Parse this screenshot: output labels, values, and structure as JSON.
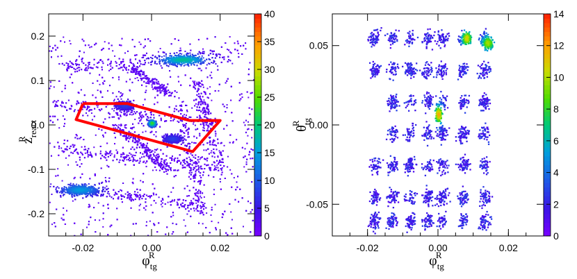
{
  "chart_data": [
    {
      "type": "heatmap",
      "xlabel": {
        "base": "φ",
        "sub": "tg",
        "sup": "R"
      },
      "ylabel": {
        "base": "z",
        "sub": "react",
        "sup": "R"
      },
      "xlim": [
        -0.03,
        0.03
      ],
      "ylim": [
        -0.25,
        0.25
      ],
      "xticks": [
        -0.02,
        0.0,
        0.02
      ],
      "xtick_labels": [
        "-0.02",
        "0.00",
        "0.02"
      ],
      "yticks": [
        -0.2,
        -0.1,
        0.0,
        0.1,
        0.2
      ],
      "ytick_labels": [
        "-0.2",
        "-0.1",
        "0.0",
        "0.1",
        "0.2"
      ],
      "colorbar": {
        "min": 0,
        "max": 40,
        "ticks": [
          0,
          5,
          10,
          15,
          20,
          25,
          30,
          35,
          40
        ],
        "tick_labels": [
          "0",
          "5",
          "10",
          "15",
          "20",
          "25",
          "30",
          "35",
          "40"
        ]
      },
      "hotspots": [
        {
          "x": 0.009,
          "y": 0.148,
          "w": 0.007,
          "h": 0.012,
          "peak": 17
        },
        {
          "x": -0.021,
          "y": -0.145,
          "w": 0.006,
          "h": 0.014,
          "peak": 13
        },
        {
          "x": 0.0,
          "y": 0.005,
          "w": 0.0012,
          "h": 0.008,
          "peak": 22
        },
        {
          "x": 0.006,
          "y": -0.03,
          "w": 0.003,
          "h": 0.01,
          "peak": 6
        },
        {
          "x": -0.008,
          "y": 0.045,
          "w": 0.003,
          "h": 0.01,
          "peak": 6
        }
      ],
      "cut_polygon": {
        "color": "#ff0000",
        "points": [
          [
            -0.02,
            0.048
          ],
          [
            -0.007,
            0.048
          ],
          [
            0.011,
            0.01
          ],
          [
            0.015,
            0.01
          ],
          [
            0.02,
            0.01
          ],
          [
            0.012,
            -0.06
          ],
          [
            -0.022,
            0.012
          ],
          [
            -0.02,
            0.048
          ]
        ]
      }
    },
    {
      "type": "heatmap",
      "xlabel": {
        "base": "φ",
        "sub": "tg",
        "sup": "R"
      },
      "ylabel": {
        "base": "θ",
        "sub": "tg",
        "sup": "R"
      },
      "xlim": [
        -0.03,
        0.03
      ],
      "ylim": [
        -0.07,
        0.07
      ],
      "xticks": [
        -0.02,
        0.0,
        0.02
      ],
      "xtick_labels": [
        "-0.02",
        "0.00",
        "0.02"
      ],
      "yticks": [
        -0.05,
        0.0,
        0.05
      ],
      "ytick_labels": [
        "-0.05",
        "0.00",
        "0.05"
      ],
      "colorbar": {
        "min": 0,
        "max": 14,
        "ticks": [
          0,
          2,
          4,
          6,
          8,
          10,
          12,
          14
        ],
        "tick_labels": [
          "0",
          "2",
          "4",
          "6",
          "8",
          "10",
          "12",
          "14"
        ]
      },
      "sieve_columns_x": [
        -0.018,
        -0.013,
        -0.008,
        -0.003,
        0.001,
        0.007,
        0.013
      ],
      "sieve_rows_y": [
        0.055,
        0.035,
        0.015,
        -0.005,
        -0.025,
        -0.045,
        -0.06
      ],
      "hotspots": [
        {
          "x": 0.008,
          "y": 0.055,
          "w": 0.0015,
          "h": 0.005,
          "peak": 9
        },
        {
          "x": 0.014,
          "y": 0.052,
          "w": 0.0018,
          "h": 0.005,
          "peak": 8
        },
        {
          "x": 0.0,
          "y": 0.007,
          "w": 0.0012,
          "h": 0.006,
          "peak": 10
        }
      ]
    }
  ]
}
